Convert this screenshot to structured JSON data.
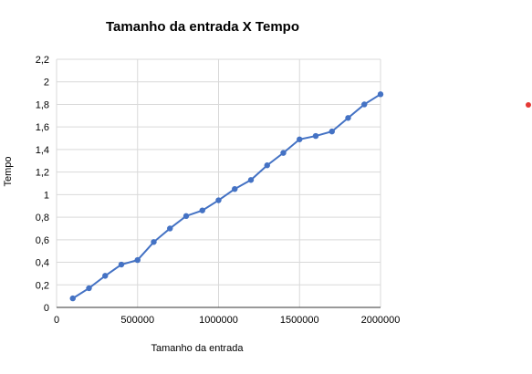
{
  "chart_data": {
    "type": "line",
    "title": "Tamanho da entrada X Tempo",
    "xlabel": "Tamanho da entrada",
    "ylabel": "Tempo",
    "xlim": [
      0,
      2000000
    ],
    "ylim": [
      0,
      2.2
    ],
    "x_ticks": [
      0,
      500000,
      1000000,
      1500000,
      2000000
    ],
    "x_tick_labels": [
      "0",
      "500000",
      "1000000",
      "1500000",
      "2000000"
    ],
    "y_ticks": [
      0,
      0.2,
      0.4,
      0.6,
      0.8,
      1,
      1.2,
      1.4,
      1.6,
      1.8,
      2,
      2.2
    ],
    "y_tick_labels": [
      "0",
      "0,2",
      "0,4",
      "0,6",
      "0,8",
      "1",
      "1,2",
      "1,4",
      "1,6",
      "1,8",
      "2",
      "2,2"
    ],
    "grid": true,
    "legend": "right",
    "series": [
      {
        "color": "#4472c4",
        "legend_color": "#e53935",
        "x": [
          100000,
          200000,
          300000,
          400000,
          500000,
          600000,
          700000,
          800000,
          900000,
          1000000,
          1100000,
          1200000,
          1300000,
          1400000,
          1500000,
          1600000,
          1700000,
          1800000,
          1900000,
          2000000
        ],
        "y": [
          0.08,
          0.17,
          0.28,
          0.38,
          0.42,
          0.58,
          0.7,
          0.81,
          0.86,
          0.95,
          1.05,
          1.13,
          1.26,
          1.37,
          1.49,
          1.52,
          1.56,
          1.68,
          1.8,
          1.89
        ]
      }
    ]
  }
}
